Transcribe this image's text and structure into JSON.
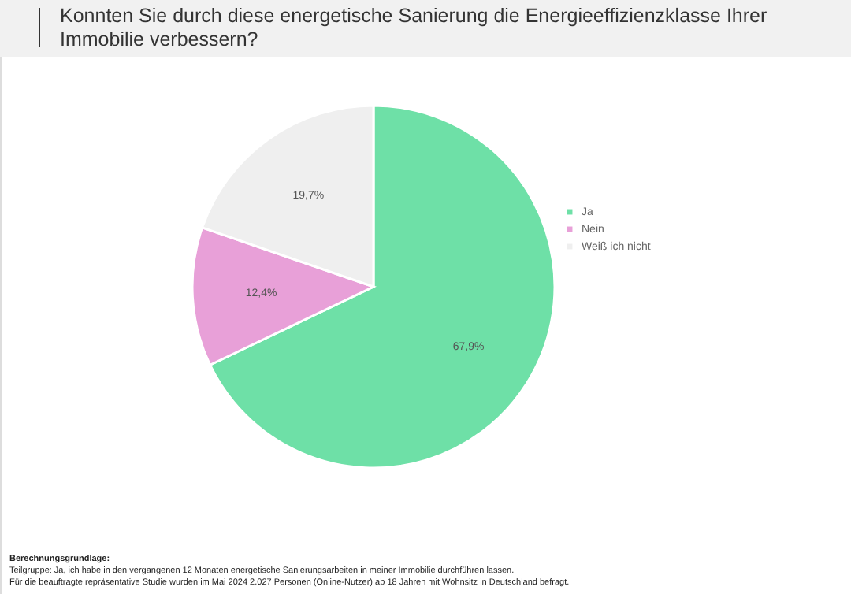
{
  "chart_data": {
    "type": "pie",
    "title": "Konnten Sie durch diese energetische Sanierung die Energieeffizienzklasse Ihrer Immobilie verbessern?",
    "categories": [
      "Ja",
      "Nein",
      "Weiß ich nicht"
    ],
    "values": [
      67.9,
      12.4,
      19.7
    ],
    "value_labels": [
      "67,9%",
      "12,4%",
      "19,7%"
    ],
    "colors": [
      "#6ee0a7",
      "#e8a0d8",
      "#efefef"
    ],
    "legend": "right",
    "annotations": [
      "Berechnungsgrundlage:",
      "Teilgruppe: Ja, ich habe in den vergangenen 12 Monaten energetische Sanierungsarbeiten in meiner Immobilie durchführen lassen.",
      "Für die beauftragte repräsentative Studie wurden im Mai 2024 2.027 Personen (Online-Nutzer) ab 18 Jahren mit Wohnsitz in Deutschland befragt."
    ]
  }
}
